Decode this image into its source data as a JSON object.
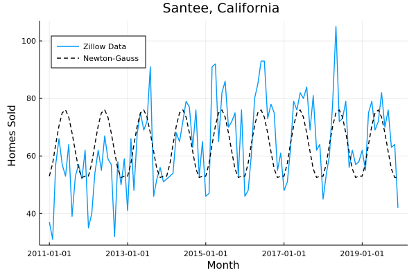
{
  "chart_data": {
    "type": "line",
    "title": "Santee, California",
    "xlabel": "Month",
    "ylabel": "Homes Sold",
    "x_tick_labels": [
      "2011-01-01",
      "2013-01-01",
      "2015-01-01",
      "2017-01-01",
      "2019-01-01"
    ],
    "x_tick_dates": [
      "2011-01-01",
      "2013-01-01",
      "2015-01-01",
      "2017-01-01",
      "2019-01-01"
    ],
    "x_range": [
      "2010-10-01",
      "2020-03-01"
    ],
    "y_ticks": [
      40,
      60,
      80,
      100
    ],
    "ylim": [
      29,
      107
    ],
    "grid": true,
    "legend_position": "top-left",
    "series": [
      {
        "name": "Zillow Data",
        "color": "#009af9",
        "style": "solid",
        "x": [
          "2011-01",
          "2011-02",
          "2011-03",
          "2011-04",
          "2011-05",
          "2011-06",
          "2011-07",
          "2011-08",
          "2011-09",
          "2011-10",
          "2011-11",
          "2011-12",
          "2012-01",
          "2012-02",
          "2012-03",
          "2012-04",
          "2012-05",
          "2012-06",
          "2012-07",
          "2012-08",
          "2012-09",
          "2012-10",
          "2012-11",
          "2012-12",
          "2013-01",
          "2013-02",
          "2013-03",
          "2013-04",
          "2013-05",
          "2013-06",
          "2013-07",
          "2013-08",
          "2013-09",
          "2013-10",
          "2013-11",
          "2013-12",
          "2014-01",
          "2014-02",
          "2014-03",
          "2014-04",
          "2014-05",
          "2014-06",
          "2014-07",
          "2014-08",
          "2014-09",
          "2014-10",
          "2014-11",
          "2014-12",
          "2015-01",
          "2015-02",
          "2015-03",
          "2015-04",
          "2015-05",
          "2015-06",
          "2015-07",
          "2015-08",
          "2015-09",
          "2015-10",
          "2015-11",
          "2015-12",
          "2016-01",
          "2016-02",
          "2016-03",
          "2016-04",
          "2016-05",
          "2016-06",
          "2016-07",
          "2016-08",
          "2016-09",
          "2016-10",
          "2016-11",
          "2016-12",
          "2017-01",
          "2017-02",
          "2017-03",
          "2017-04",
          "2017-05",
          "2017-06",
          "2017-07",
          "2017-08",
          "2017-09",
          "2017-10",
          "2017-11",
          "2017-12",
          "2018-01",
          "2018-02",
          "2018-03",
          "2018-04",
          "2018-05",
          "2018-06",
          "2018-07",
          "2018-08",
          "2018-09",
          "2018-10",
          "2018-11",
          "2018-12",
          "2019-01",
          "2019-02",
          "2019-03",
          "2019-04",
          "2019-05",
          "2019-06",
          "2019-07",
          "2019-08",
          "2019-09",
          "2019-10",
          "2019-11",
          "2019-12"
        ],
        "y": [
          37,
          31,
          57,
          66,
          57,
          53,
          64,
          39,
          53,
          57,
          52,
          62,
          35,
          40,
          54,
          62,
          55,
          67,
          59,
          57,
          32,
          58,
          50,
          59,
          41,
          66,
          48,
          68,
          75,
          69,
          72,
          91,
          46,
          52,
          56,
          51,
          52,
          53,
          54,
          68,
          65,
          72,
          79,
          77,
          63,
          76,
          53,
          65,
          46,
          47,
          91,
          92,
          65,
          82,
          86,
          70,
          72,
          75,
          53,
          76,
          46,
          48,
          60,
          80,
          85,
          93,
          93,
          73,
          78,
          75,
          55,
          61,
          48,
          51,
          62,
          79,
          76,
          82,
          80,
          84,
          69,
          81,
          62,
          64,
          45,
          54,
          60,
          79,
          105,
          72,
          73,
          79,
          56,
          62,
          57,
          58,
          62,
          55,
          75,
          79,
          69,
          72,
          82,
          70,
          76,
          63,
          64,
          42
        ]
      },
      {
        "name": "Newton-Gauss",
        "color": "#000000",
        "style": "dashed",
        "model": "sinusoidal fit, 12-month period",
        "x": [
          "2011-01",
          "2011-02",
          "2011-03",
          "2011-04",
          "2011-05",
          "2011-06",
          "2011-07",
          "2011-08",
          "2011-09",
          "2011-10",
          "2011-11",
          "2011-12",
          "2012-01",
          "2012-02",
          "2012-03",
          "2012-04",
          "2012-05",
          "2012-06",
          "2012-07",
          "2012-08",
          "2012-09",
          "2012-10",
          "2012-11",
          "2012-12",
          "2013-01",
          "2013-02",
          "2013-03",
          "2013-04",
          "2013-05",
          "2013-06",
          "2013-07",
          "2013-08",
          "2013-09",
          "2013-10",
          "2013-11",
          "2013-12",
          "2014-01",
          "2014-02",
          "2014-03",
          "2014-04",
          "2014-05",
          "2014-06",
          "2014-07",
          "2014-08",
          "2014-09",
          "2014-10",
          "2014-11",
          "2014-12",
          "2015-01",
          "2015-02",
          "2015-03",
          "2015-04",
          "2015-05",
          "2015-06",
          "2015-07",
          "2015-08",
          "2015-09",
          "2015-10",
          "2015-11",
          "2015-12",
          "2016-01",
          "2016-02",
          "2016-03",
          "2016-04",
          "2016-05",
          "2016-06",
          "2016-07",
          "2016-08",
          "2016-09",
          "2016-10",
          "2016-11",
          "2016-12",
          "2017-01",
          "2017-02",
          "2017-03",
          "2017-04",
          "2017-05",
          "2017-06",
          "2017-07",
          "2017-08",
          "2017-09",
          "2017-10",
          "2017-11",
          "2017-12",
          "2018-01",
          "2018-02",
          "2018-03",
          "2018-04",
          "2018-05",
          "2018-06",
          "2018-07",
          "2018-08",
          "2018-09",
          "2018-10",
          "2018-11",
          "2018-12",
          "2019-01",
          "2019-02",
          "2019-03",
          "2019-04",
          "2019-05",
          "2019-06",
          "2019-07",
          "2019-08",
          "2019-09",
          "2019-10",
          "2019-11",
          "2019-12"
        ],
        "y": [
          53.0,
          57.5,
          64.0,
          70.5,
          75.0,
          76.0,
          73.5,
          68.0,
          61.5,
          55.5,
          52.5,
          53.0,
          53.0,
          57.5,
          64.0,
          70.5,
          75.0,
          76.0,
          73.5,
          68.0,
          61.5,
          55.5,
          52.5,
          53.0,
          53.0,
          57.5,
          64.0,
          70.5,
          75.0,
          76.0,
          73.5,
          68.0,
          61.5,
          55.5,
          52.5,
          53.0,
          53.0,
          57.5,
          64.0,
          70.5,
          75.0,
          76.0,
          73.5,
          68.0,
          61.5,
          55.5,
          52.5,
          53.0,
          53.0,
          57.5,
          64.0,
          70.5,
          75.0,
          76.0,
          73.5,
          68.0,
          61.5,
          55.5,
          52.5,
          53.0,
          53.0,
          57.5,
          64.0,
          70.5,
          75.0,
          76.0,
          73.5,
          68.0,
          61.5,
          55.5,
          52.5,
          53.0,
          53.0,
          57.5,
          64.0,
          70.5,
          75.0,
          76.0,
          73.5,
          68.0,
          61.5,
          55.5,
          52.5,
          53.0,
          53.0,
          57.5,
          64.0,
          70.5,
          75.0,
          76.0,
          73.5,
          68.0,
          61.5,
          55.5,
          52.5,
          53.0,
          53.0,
          57.5,
          64.0,
          70.5,
          75.0,
          76.0,
          73.5,
          68.0,
          61.5,
          55.5,
          52.5,
          52.5
        ]
      }
    ]
  }
}
